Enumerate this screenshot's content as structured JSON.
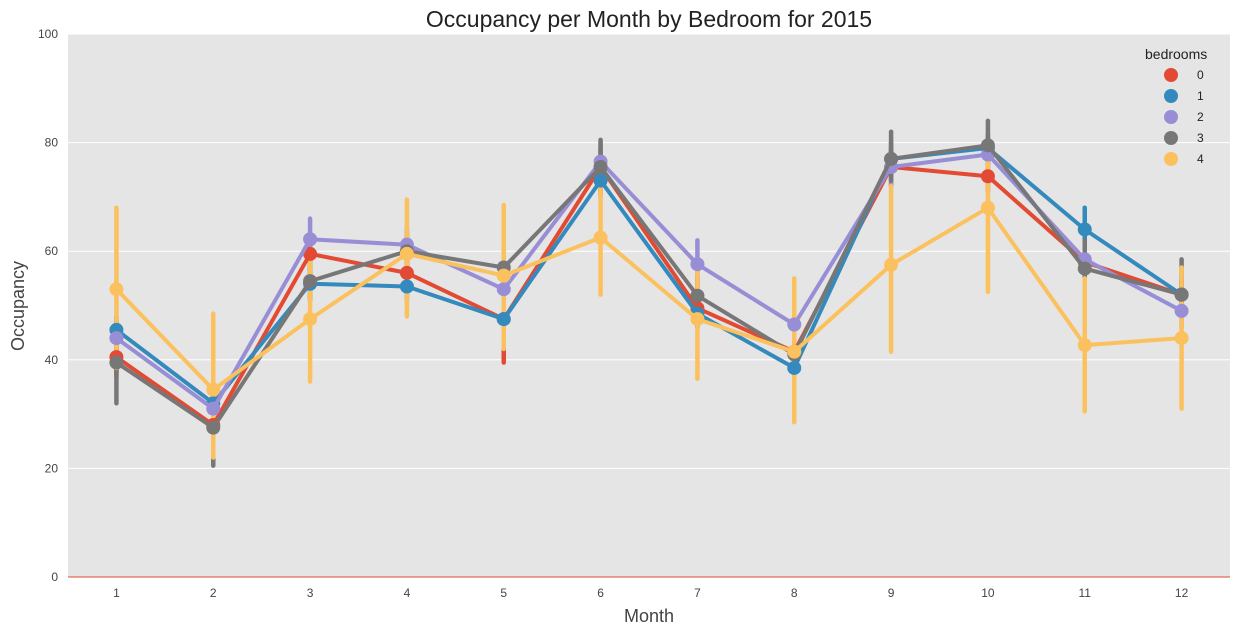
{
  "chart_data": {
    "type": "line",
    "title": "Occupancy per Month by Bedroom for 2015",
    "xlabel": "Month",
    "ylabel": "Occupancy",
    "categories": [
      "1",
      "2",
      "3",
      "4",
      "5",
      "6",
      "7",
      "8",
      "9",
      "10",
      "11",
      "12"
    ],
    "ylim": [
      0,
      100
    ],
    "yticks": [
      "0",
      "20",
      "40",
      "60",
      "80",
      "100"
    ],
    "grid": true,
    "legend": {
      "title": "bedrooms",
      "position": "top-right"
    },
    "series": [
      {
        "name": "0",
        "color": "#E24A33",
        "values": [
          40.5,
          28.0,
          59.5,
          56.0,
          47.5,
          75.5,
          49.5,
          41.5,
          75.5,
          73.8,
          58.0,
          52.0
        ],
        "error_low": [
          37,
          22,
          56,
          53,
          39.5,
          72,
          46,
          38,
          72,
          71,
          55,
          49
        ],
        "error_high": [
          44,
          33,
          63,
          59,
          55,
          79,
          53,
          45,
          79,
          77,
          61,
          55
        ]
      },
      {
        "name": "1",
        "color": "#348ABD",
        "values": [
          45.5,
          32.0,
          54.0,
          53.5,
          47.5,
          73.0,
          48.5,
          38.5,
          77.0,
          79.0,
          64.0,
          52.0
        ],
        "error_low": [
          43,
          29,
          51,
          51,
          44,
          70,
          46,
          36,
          74,
          76.5,
          61,
          49.5
        ],
        "error_high": [
          48,
          35,
          57,
          56,
          51,
          76,
          51,
          41,
          80,
          81.5,
          68,
          54.5
        ]
      },
      {
        "name": "2",
        "color": "#988ED5",
        "values": [
          44.0,
          31.0,
          62.2,
          61.2,
          53.0,
          76.5,
          57.6,
          46.5,
          75.5,
          77.8,
          58.5,
          49.0
        ],
        "error_low": [
          41,
          25,
          58.5,
          58,
          49,
          73,
          53,
          43.5,
          72,
          75,
          55.5,
          46
        ],
        "error_high": [
          47,
          36,
          66,
          64.5,
          57,
          80,
          62,
          49.5,
          79,
          80.5,
          61.5,
          52
        ]
      },
      {
        "name": "3",
        "color": "#777777",
        "values": [
          39.5,
          27.5,
          54.5,
          60.0,
          57.0,
          75.5,
          51.8,
          41.0,
          77.0,
          79.5,
          56.8,
          52.0
        ],
        "error_low": [
          32,
          20.5,
          51,
          56.5,
          54,
          71,
          48,
          36,
          73,
          76,
          53.5,
          48
        ],
        "error_high": [
          47,
          34,
          58,
          63.5,
          60,
          80.5,
          55.5,
          46,
          82,
          84,
          62,
          58.5
        ]
      },
      {
        "name": "4",
        "color": "#FBC15E",
        "values": [
          53.0,
          34.5,
          47.5,
          59.5,
          55.5,
          62.5,
          47.5,
          41.5,
          57.5,
          68.0,
          42.7,
          44.0
        ],
        "error_low": [
          38.5,
          22,
          36,
          48,
          42,
          52,
          36.5,
          28.5,
          41.5,
          52.5,
          30.5,
          31
        ],
        "error_high": [
          68,
          48.5,
          58,
          69.5,
          68.5,
          73,
          58,
          55,
          72,
          80,
          55,
          57
        ]
      }
    ]
  }
}
